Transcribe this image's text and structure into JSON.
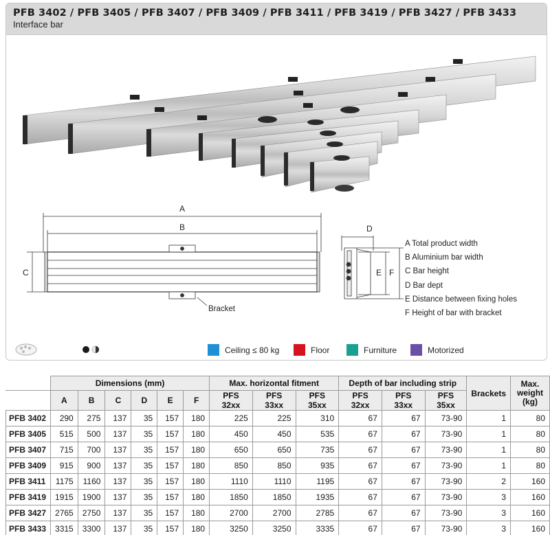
{
  "header": {
    "title": "PFB 3402 / PFB 3405 / PFB 3407 / PFB 3409 / PFB 3411 / PFB 3419 / PFB 3427 / PFB 3433",
    "subtitle": "Interface bar"
  },
  "drawing": {
    "label_A": "A",
    "label_B": "B",
    "label_C": "C",
    "label_D": "D",
    "label_E": "E",
    "label_F": "F",
    "bracket_label": "Bracket"
  },
  "legend_items": [
    "A  Total product width",
    "B  Aluminium bar width",
    "C  Bar height",
    "D  Bar dept",
    "E  Distance between fixing holes",
    "F  Height of bar with bracket"
  ],
  "mount_types": [
    {
      "label": "Ceiling ≤ 80 kg",
      "color": "#1f8fd6"
    },
    {
      "label": "Floor",
      "color": "#d6121f"
    },
    {
      "label": "Furniture",
      "color": "#1aa08e"
    },
    {
      "label": "Motorized",
      "color": "#6a4fa6"
    }
  ],
  "table": {
    "group_headers": {
      "dimensions": "Dimensions (mm)",
      "fitment": "Max. horizontal fitment",
      "depth": "Depth of bar including strip",
      "brackets": "Brackets",
      "weight": "Max. weight (kg)"
    },
    "sub_headers": [
      "A",
      "B",
      "C",
      "D",
      "E",
      "F",
      "PFS 32xx",
      "PFS 33xx",
      "PFS 35xx",
      "PFS 32xx",
      "PFS 33xx",
      "PFS 35xx"
    ],
    "rows": [
      [
        "PFB 3402",
        "290",
        "275",
        "137",
        "35",
        "157",
        "180",
        "225",
        "225",
        "310",
        "67",
        "67",
        "73-90",
        "1",
        "80"
      ],
      [
        "PFB 3405",
        "515",
        "500",
        "137",
        "35",
        "157",
        "180",
        "450",
        "450",
        "535",
        "67",
        "67",
        "73-90",
        "1",
        "80"
      ],
      [
        "PFB 3407",
        "715",
        "700",
        "137",
        "35",
        "157",
        "180",
        "650",
        "650",
        "735",
        "67",
        "67",
        "73-90",
        "1",
        "80"
      ],
      [
        "PFB 3409",
        "915",
        "900",
        "137",
        "35",
        "157",
        "180",
        "850",
        "850",
        "935",
        "67",
        "67",
        "73-90",
        "1",
        "80"
      ],
      [
        "PFB 3411",
        "1175",
        "1160",
        "137",
        "35",
        "157",
        "180",
        "1110",
        "1110",
        "1195",
        "67",
        "67",
        "73-90",
        "2",
        "160"
      ],
      [
        "PFB 3419",
        "1915",
        "1900",
        "137",
        "35",
        "157",
        "180",
        "1850",
        "1850",
        "1935",
        "67",
        "67",
        "73-90",
        "3",
        "160"
      ],
      [
        "PFB 3427",
        "2765",
        "2750",
        "137",
        "35",
        "157",
        "180",
        "2700",
        "2700",
        "2785",
        "67",
        "67",
        "73-90",
        "3",
        "160"
      ],
      [
        "PFB 3433",
        "3315",
        "3300",
        "137",
        "35",
        "157",
        "180",
        "3250",
        "3250",
        "3335",
        "67",
        "67",
        "73-90",
        "3",
        "160"
      ]
    ]
  }
}
